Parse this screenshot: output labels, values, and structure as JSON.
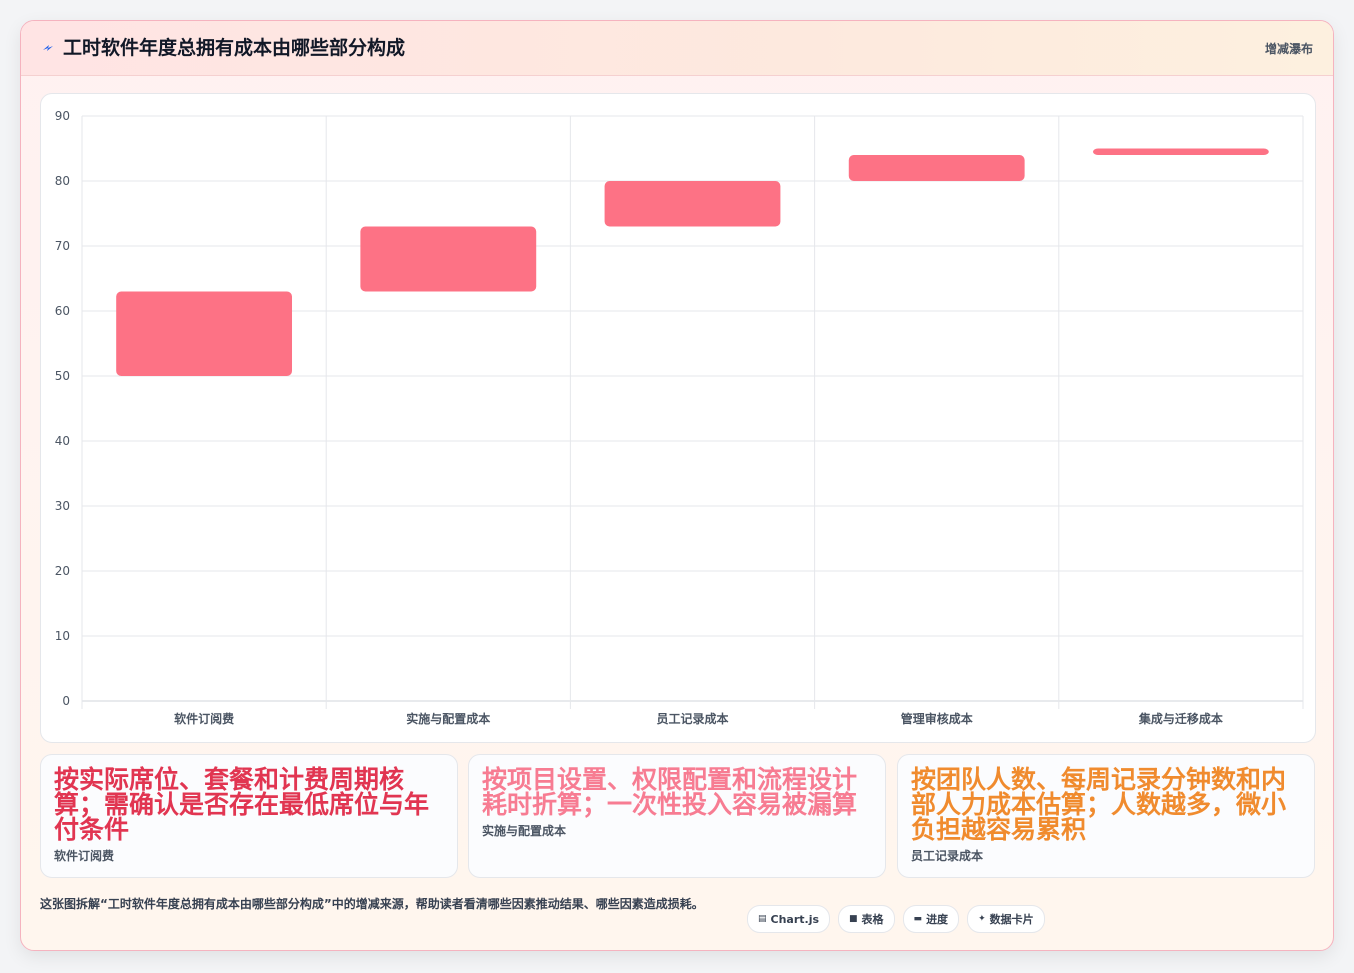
{
  "header": {
    "title": "工时软件年度总拥有成本由哪些部分构成",
    "tag": "增减瀑布"
  },
  "chart_data": {
    "type": "bar",
    "subtype": "floating-bar-waterfall",
    "title": "工时软件年度总拥有成本由哪些部分构成",
    "categories": [
      "软件订阅费",
      "实施与配置成本",
      "员工记录成本",
      "管理审核成本",
      "集成与迁移成本"
    ],
    "ranges": [
      [
        50,
        63
      ],
      [
        63,
        73
      ],
      [
        73,
        80
      ],
      [
        80,
        84
      ],
      [
        84,
        85
      ]
    ],
    "ylim": [
      0,
      90
    ],
    "yticks": [
      "0",
      "10",
      "20",
      "30",
      "40",
      "50",
      "60",
      "70",
      "80",
      "90"
    ],
    "grid": true,
    "legend": "none",
    "bar_color": "#fd7285"
  },
  "notes": [
    {
      "big": "按实际席位、套餐和计费周期核算；需确认是否存在最低席位与年付条件",
      "small": "软件订阅费",
      "color": "#e13551"
    },
    {
      "big": "按项目设置、权限配置和流程设计耗时折算；一次性投入容易被漏算",
      "small": "实施与配置成本",
      "color": "#f77c92"
    },
    {
      "big": "按团队人数、每周记录分钟数和内部人力成本估算；人数越多，微小负担越容易累积",
      "small": "员工记录成本",
      "color": "#f08b2e"
    }
  ],
  "footer": {
    "text": "这张图拆解“工时软件年度总拥有成本由哪些部分构成”中的增减来源，帮助读者看清哪些因素推动结果、哪些因素造成损耗。",
    "pills": [
      {
        "icon": "chart-icon",
        "glyph": "▤",
        "label": "Chart.js"
      },
      {
        "icon": "table-icon",
        "glyph": "■",
        "label": "表格"
      },
      {
        "icon": "progress-icon",
        "glyph": "▬",
        "label": "进度"
      },
      {
        "icon": "card-icon",
        "glyph": "✦",
        "label": "数据卡片"
      }
    ]
  }
}
